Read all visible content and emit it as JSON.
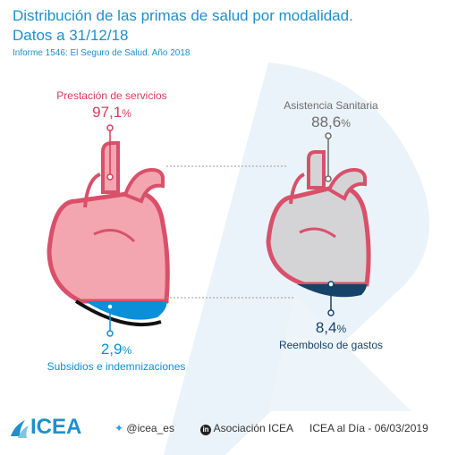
{
  "title_line1": "Distribución de las primas de salud por modalidad.",
  "title_line2": "Datos a 31/12/18",
  "subtitle": "Informe 1546: El Seguro de Salud. Año 2018",
  "chart_data": {
    "type": "pie",
    "title": "Distribución de las primas de salud por modalidad. Datos a 31/12/18",
    "charts": [
      {
        "slices": [
          {
            "name": "Prestación de servicios",
            "value": 97.1,
            "color": "#f4a6b0"
          },
          {
            "name": "Subsidios e indemnizaciones",
            "value": 2.9,
            "color": "#0a8fd8"
          }
        ]
      },
      {
        "slices": [
          {
            "name": "Asistencia Sanitaria",
            "value": 88.6,
            "color": "#d4d4d6"
          },
          {
            "name": "Reembolso de gastos",
            "value": 8.4,
            "color": "#15436a"
          }
        ]
      }
    ]
  },
  "labels": {
    "prestacion": {
      "name": "Prestación de servicios",
      "value": "97,1",
      "unit": "%"
    },
    "subsidios": {
      "name": "Subsidios e indemnizaciones",
      "value": "2,9",
      "unit": "%"
    },
    "asistencia": {
      "name": "Asistencia Sanitaria",
      "value": "88,6",
      "unit": "%"
    },
    "reembolso": {
      "name": "Reembolso de gastos",
      "value": "8,4",
      "unit": "%"
    }
  },
  "footer": {
    "logo": "ICEA",
    "twitter": "@icea_es",
    "linkedin": "Asociación ICEA",
    "date": "ICEA al Día - 06/03/2019"
  },
  "colors": {
    "accent": "#1e8fcc",
    "pink": "#d63b5c",
    "gray": "#6d6d6d",
    "navy": "#15436a"
  }
}
